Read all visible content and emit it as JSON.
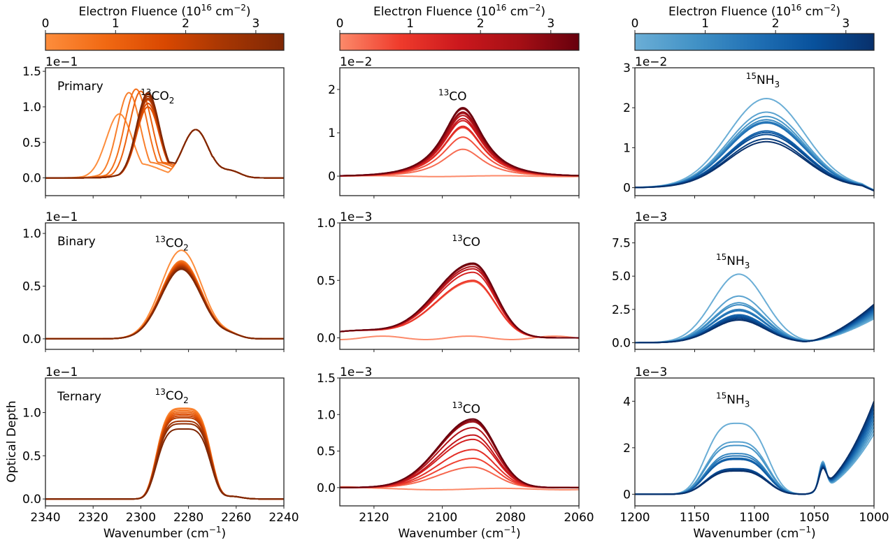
{
  "figure": {
    "ylabel": "Optical Depth",
    "xlabel": "Wavenumber (cm",
    "xlabel_sup": "−1",
    "xlabel_close": ")"
  },
  "colorbars": [
    {
      "title": "Electron Fluence (10",
      "title_sup1": "16",
      "title_mid": " cm",
      "title_sup2": "−2",
      "title_close": ")",
      "ticks": [
        "0",
        "1",
        "2",
        "3"
      ],
      "tick_values": [
        0,
        1,
        2,
        3
      ],
      "range": [
        0,
        3.4
      ],
      "colors": [
        "#fd8d3c",
        "#f16913",
        "#d94801",
        "#a63603",
        "#7f2704"
      ]
    },
    {
      "title": "Electron Fluence (10",
      "title_sup1": "16",
      "title_mid": " cm",
      "title_sup2": "−2",
      "title_close": ")",
      "ticks": [
        "0",
        "1",
        "2",
        "3"
      ],
      "tick_values": [
        0,
        1,
        2,
        3
      ],
      "range": [
        0,
        3.4
      ],
      "colors": [
        "#fc8a6a",
        "#ef3b2c",
        "#cb181d",
        "#a50f15",
        "#67000d"
      ]
    },
    {
      "title": "Electron Fluence (10",
      "title_sup1": "16",
      "title_mid": " cm",
      "title_sup2": "−2",
      "title_close": ")",
      "ticks": [
        "0",
        "1",
        "2",
        "3"
      ],
      "tick_values": [
        0,
        1,
        2,
        3
      ],
      "range": [
        0,
        3.4
      ],
      "colors": [
        "#6baed6",
        "#4292c6",
        "#2171b5",
        "#08519c",
        "#08306b"
      ]
    }
  ],
  "chart_data": [
    {
      "type": "line",
      "row": "Primary",
      "panel_label": "Primary",
      "species": "CO",
      "species_sup": "13",
      "species_sub": "2",
      "multiplier": "1e−1",
      "xlim": [
        2340,
        2240
      ],
      "ylim": [
        -0.25,
        1.55
      ],
      "xticks": [
        2340,
        2320,
        2300,
        2280,
        2260,
        2240
      ],
      "yticks": [
        0.0,
        0.5,
        1.0,
        1.5
      ],
      "ytick_labels": [
        "0.0",
        "0.5",
        "1.0",
        "1.5"
      ],
      "series_peaks": [
        0.9,
        1.2,
        1.25,
        1.22,
        1.0,
        1.05,
        1.1,
        1.12,
        1.15,
        1.18,
        1.2
      ],
      "series_peak_positions": [
        2309,
        2305,
        2302,
        2300,
        2297,
        2297,
        2297,
        2297,
        2297,
        2297,
        2297
      ],
      "second_peak": 0.68,
      "second_peak_position": 2277
    },
    {
      "type": "line",
      "row": "Primary",
      "species": "CO",
      "species_sup": "13",
      "species_sub": "",
      "multiplier": "1e−2",
      "xlim": [
        2130,
        2060
      ],
      "ylim": [
        -0.45,
        2.5
      ],
      "xticks": [
        2120,
        2100,
        2080,
        2060
      ],
      "yticks": [
        0,
        1,
        2
      ],
      "ytick_labels": [
        "0",
        "1",
        "2"
      ],
      "series_peaks": [
        0.0,
        0.62,
        0.9,
        1.12,
        1.15,
        1.28,
        1.33,
        1.4,
        1.45,
        1.48,
        1.55,
        1.58
      ],
      "peak_position": 2094
    },
    {
      "type": "line",
      "row": "Primary",
      "species": "NH",
      "species_sup": "15",
      "species_sub": "3",
      "multiplier": "1e−2",
      "xlim": [
        1200,
        1000
      ],
      "ylim": [
        -0.2,
        3.0
      ],
      "xticks": [
        1200,
        1150,
        1100,
        1050,
        1000
      ],
      "yticks": [
        0,
        1,
        2,
        3
      ],
      "ytick_labels": [
        "0",
        "1",
        "2",
        "3"
      ],
      "series_peaks": [
        2.23,
        1.89,
        1.78,
        1.7,
        1.65,
        1.62,
        1.42,
        1.38,
        1.33,
        1.22,
        1.15
      ],
      "peak_position": 1090
    },
    {
      "type": "line",
      "row": "Binary",
      "panel_label": "Binary",
      "species": "CO",
      "species_sup": "13",
      "species_sub": "2",
      "multiplier": "1e−1",
      "xlim": [
        2340,
        2240
      ],
      "ylim": [
        -0.1,
        1.1
      ],
      "xticks": [
        2340,
        2320,
        2300,
        2280,
        2260,
        2240
      ],
      "yticks": [
        0.0,
        0.5,
        1.0
      ],
      "ytick_labels": [
        "0.0",
        "0.5",
        "1.0"
      ],
      "series_peaks": [
        0.84,
        0.74,
        0.73,
        0.72,
        0.71,
        0.7,
        0.69,
        0.68,
        0.67,
        0.66
      ],
      "peak_position": 2283
    },
    {
      "type": "line",
      "row": "Binary",
      "species": "CO",
      "species_sup": "13",
      "species_sub": "",
      "multiplier": "1e−3",
      "xlim": [
        2130,
        2060
      ],
      "ylim": [
        -0.1,
        1.0
      ],
      "xticks": [
        2120,
        2100,
        2080,
        2060
      ],
      "yticks": [
        0.0,
        0.5,
        1.0
      ],
      "ytick_labels": [
        "0.0",
        "0.5",
        "1.0"
      ],
      "series_peaks": [
        0.0,
        0.49,
        0.5,
        0.57,
        0.6,
        0.62,
        0.64,
        0.65
      ],
      "peak_position": 2091
    },
    {
      "type": "line",
      "row": "Binary",
      "species": "NH",
      "species_sup": "15",
      "species_sub": "3",
      "multiplier": "1e−3",
      "xlim": [
        1200,
        1000
      ],
      "ylim": [
        -0.5,
        9.0
      ],
      "xticks": [
        1200,
        1150,
        1100,
        1050,
        1000
      ],
      "yticks": [
        0.0,
        2.5,
        5.0,
        7.5
      ],
      "ytick_labels": [
        "0.0",
        "2.5",
        "5.0",
        "7.5"
      ],
      "series_peaks": [
        5.15,
        3.5,
        3.0,
        2.85,
        2.5,
        2.4,
        2.1,
        2.0,
        1.9,
        1.8,
        1.7
      ],
      "peak_position": 1113
    },
    {
      "type": "line",
      "row": "Ternary",
      "panel_label": "Ternary",
      "species": "CO",
      "species_sup": "13",
      "species_sub": "2",
      "multiplier": "1e−1",
      "xlim": [
        2340,
        2240
      ],
      "ylim": [
        -0.08,
        1.4
      ],
      "xticks": [
        2340,
        2320,
        2300,
        2280,
        2260,
        2240
      ],
      "yticks": [
        0.0,
        0.5,
        1.0
      ],
      "ytick_labels": [
        "0.0",
        "0.5",
        "1.0"
      ],
      "series_peaks": [
        1.05,
        1.04,
        1.02,
        1.0,
        0.98,
        0.96,
        0.94,
        0.9,
        0.87,
        0.81
      ],
      "peak_position": 2282
    },
    {
      "type": "line",
      "row": "Ternary",
      "species": "CO",
      "species_sup": "13",
      "species_sub": "",
      "multiplier": "1e−3",
      "xlim": [
        2130,
        2060
      ],
      "ylim": [
        -0.25,
        1.5
      ],
      "xticks": [
        2120,
        2100,
        2080,
        2060
      ],
      "yticks": [
        0.0,
        0.5,
        1.0,
        1.5
      ],
      "ytick_labels": [
        "0.0",
        "0.5",
        "1.0",
        "1.5"
      ],
      "series_peaks": [
        -0.02,
        0.28,
        0.4,
        0.52,
        0.66,
        0.72,
        0.82,
        0.9,
        0.92,
        0.94
      ],
      "peak_position": 2091
    },
    {
      "type": "line",
      "row": "Ternary",
      "species": "NH",
      "species_sup": "15",
      "species_sub": "3",
      "multiplier": "1e−3",
      "xlim": [
        1200,
        1000
      ],
      "ylim": [
        -0.5,
        5.0
      ],
      "xticks": [
        1200,
        1150,
        1100,
        1050,
        1000
      ],
      "yticks": [
        0,
        2,
        4
      ],
      "ytick_labels": [
        "0",
        "2",
        "4"
      ],
      "series_peaks": [
        3.05,
        2.25,
        2.1,
        1.75,
        1.65,
        1.55,
        1.5,
        1.1,
        1.05,
        1.0
      ],
      "peak_position": 1115
    }
  ]
}
